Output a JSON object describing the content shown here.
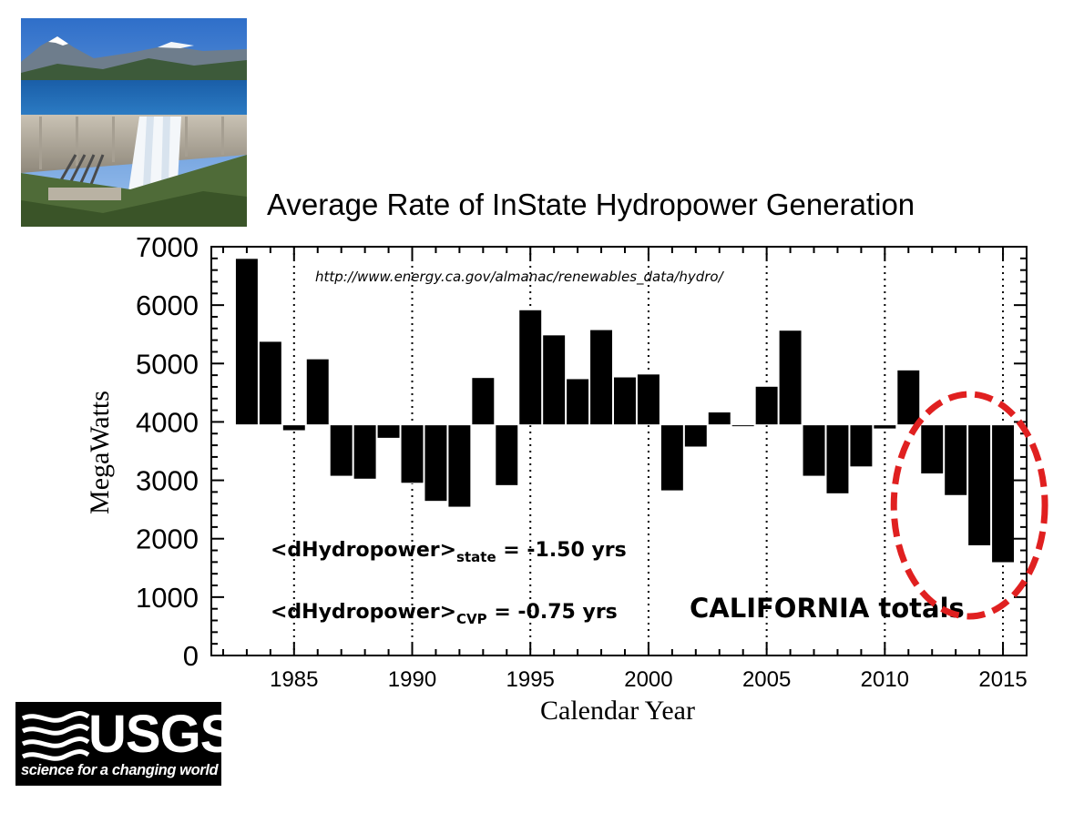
{
  "photo": {
    "alt": "Shasta Dam and Lake with Mount Shasta"
  },
  "chart_data": {
    "type": "bar",
    "title": "Average Rate of InState Hydropower Generation",
    "xlabel": "Calendar Year",
    "ylabel": "MegaWatts",
    "baseline": 3950,
    "xlim": [
      1981.5,
      2016
    ],
    "ylim": [
      0,
      7000
    ],
    "xticks": [
      1985,
      1990,
      1995,
      2000,
      2005,
      2010,
      2015
    ],
    "yticks": [
      0,
      1000,
      2000,
      3000,
      4000,
      5000,
      6000,
      7000
    ],
    "vlines": [
      1985,
      1990,
      1995,
      2000,
      2005,
      2010,
      2015
    ],
    "x": [
      1983,
      1984,
      1985,
      1986,
      1987,
      1988,
      1989,
      1990,
      1991,
      1992,
      1993,
      1994,
      1995,
      1996,
      1997,
      1998,
      1999,
      2000,
      2001,
      2002,
      2003,
      2004,
      2005,
      2006,
      2007,
      2008,
      2009,
      2010,
      2011,
      2012,
      2013,
      2014,
      2015
    ],
    "values": [
      6800,
      5380,
      3850,
      5080,
      3070,
      3020,
      3720,
      2950,
      2640,
      2540,
      4760,
      2910,
      5920,
      5490,
      4740,
      5580,
      4770,
      4820,
      2820,
      3570,
      4170,
      3920,
      4610,
      5570,
      3070,
      2770,
      3230,
      3880,
      4890,
      3110,
      2740,
      1880,
      1590
    ],
    "source_url": "http://www.energy.ca.gov/almanac/renewables_data/hydro/",
    "annotations": {
      "state": {
        "prefix": "<dHydropower>",
        "sub": "state",
        "suffix": " = -1.50 yrs"
      },
      "cvp": {
        "prefix": "<dHydropower>",
        "sub": "CVP",
        "suffix": " = -0.75 yrs"
      },
      "region_label": "CALIFORNIA totals",
      "highlight_years": [
        2012,
        2015
      ]
    }
  },
  "logo": {
    "word": "USGS",
    "tagline": "science for a changing world"
  },
  "colors": {
    "bar": "#000000",
    "highlight": "#e02020"
  }
}
